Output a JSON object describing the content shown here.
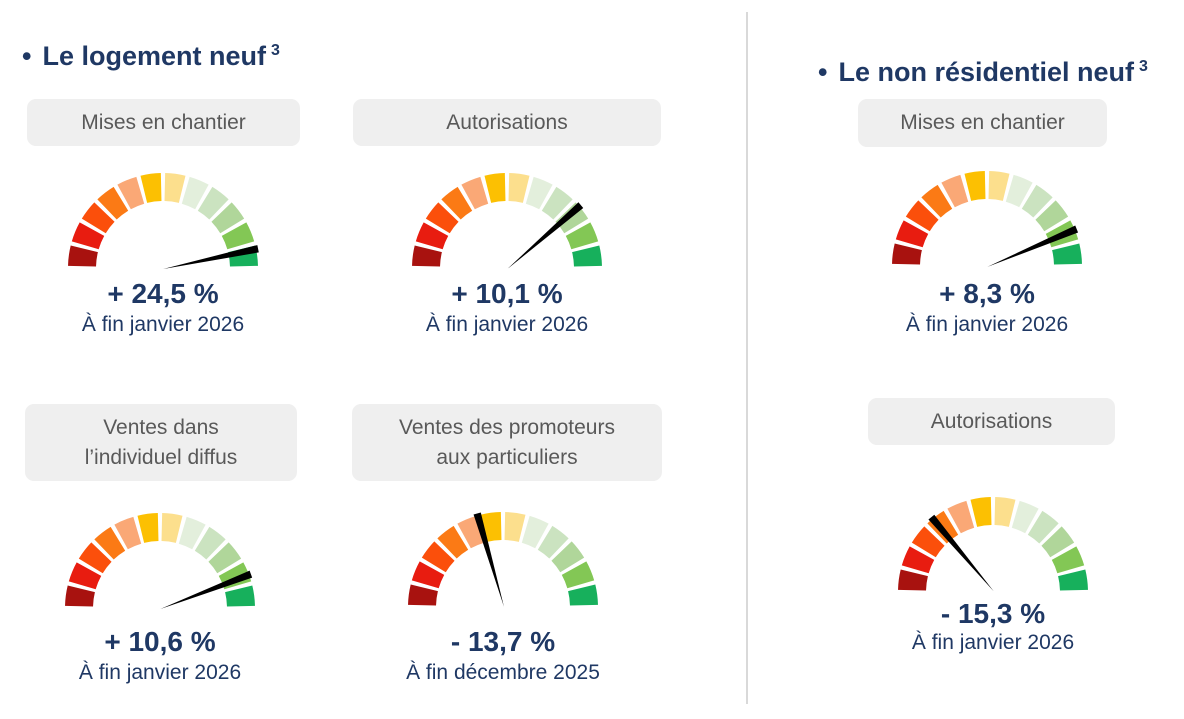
{
  "colors": {
    "accent": "#1f3864",
    "label_box_bg": "#efefef",
    "label_box_text": "#595959",
    "divider": "#d9d9d9",
    "needle": "#000000"
  },
  "gauge": {
    "segments": 12,
    "start_deg": 180,
    "end_deg": 0,
    "gap_deg": 2.6,
    "outer_radius": 95,
    "inner_radius": 67,
    "needle_len": 97,
    "palette": [
      "#a8120f",
      "#e81c10",
      "#fb4f0b",
      "#fb7a15",
      "#faa876",
      "#fcc002",
      "#fcdf8d",
      "#e3efdc",
      "#cbe3c0",
      "#b0d69a",
      "#83c755",
      "#17b05c"
    ]
  },
  "sections": [
    {
      "bullet": "•",
      "title": "Le logement neuf",
      "title_sup": "3",
      "gauges": [
        {
          "label_lines": [
            "Mises en chantier"
          ],
          "value": "+ 24,5 %",
          "date": "À fin janvier 2026",
          "needle_deg": 11
        },
        {
          "label_lines": [
            "Autorisations"
          ],
          "value": "+ 10,1 %",
          "date": "À fin janvier 2026",
          "needle_deg": 40
        },
        {
          "label_lines": [
            "Ventes dans",
            "l’individuel diffus"
          ],
          "value": "+ 10,6 %",
          "date": "À fin janvier 2026",
          "needle_deg": 20
        },
        {
          "label_lines": [
            "Ventes des promoteurs",
            "aux particuliers"
          ],
          "value": "- 13,7 %",
          "date": "À fin décembre 2025",
          "needle_deg": 105
        }
      ]
    },
    {
      "bullet": "•",
      "title": "Le non résidentiel neuf",
      "title_sup": "3",
      "gauges": [
        {
          "label_lines": [
            "Mises en chantier"
          ],
          "value": "+ 8,3 %",
          "date": "À fin janvier 2026",
          "needle_deg": 22
        },
        {
          "label_lines": [
            "Autorisations"
          ],
          "value": "- 15,3 %",
          "date": "À fin janvier 2026",
          "needle_deg": 129
        }
      ]
    }
  ],
  "chart_data": [
    {
      "type": "gauge",
      "section": "Le logement neuf",
      "indicator": "Mises en chantier",
      "value_pct": 24.5,
      "value_label": "+ 24,5 %",
      "as_of": "À fin janvier 2026",
      "scale": "red-to-green semicircle, 12 segments"
    },
    {
      "type": "gauge",
      "section": "Le logement neuf",
      "indicator": "Autorisations",
      "value_pct": 10.1,
      "value_label": "+ 10,1 %",
      "as_of": "À fin janvier 2026",
      "scale": "red-to-green semicircle, 12 segments"
    },
    {
      "type": "gauge",
      "section": "Le logement neuf",
      "indicator": "Ventes dans l’individuel diffus",
      "value_pct": 10.6,
      "value_label": "+ 10,6 %",
      "as_of": "À fin janvier 2026",
      "scale": "red-to-green semicircle, 12 segments"
    },
    {
      "type": "gauge",
      "section": "Le logement neuf",
      "indicator": "Ventes des promoteurs aux particuliers",
      "value_pct": -13.7,
      "value_label": "- 13,7 %",
      "as_of": "À fin décembre 2025",
      "scale": "red-to-green semicircle, 12 segments"
    },
    {
      "type": "gauge",
      "section": "Le non résidentiel neuf",
      "indicator": "Mises en chantier",
      "value_pct": 8.3,
      "value_label": "+ 8,3 %",
      "as_of": "À fin janvier 2026",
      "scale": "red-to-green semicircle, 12 segments"
    },
    {
      "type": "gauge",
      "section": "Le non résidentiel neuf",
      "indicator": "Autorisations",
      "value_pct": -15.3,
      "value_label": "- 15,3 %",
      "as_of": "À fin janvier 2026",
      "scale": "red-to-green semicircle, 12 segments"
    }
  ]
}
